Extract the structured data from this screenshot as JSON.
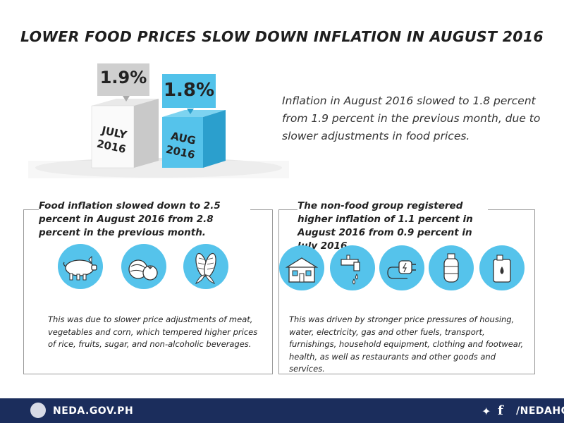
{
  "title": "LOWER FOOD PRICES SLOW DOWN INFLATION IN AUGUST 2016",
  "rates": {
    "july": {
      "value": "1.9%",
      "label_line1": "JULY",
      "label_line2": "2016"
    },
    "august": {
      "value": "1.8%",
      "label_line1": "AUG",
      "label_line2": "2016"
    }
  },
  "intro": "Inflation in August 2016 slowed to 1.8 percent from 1.9 percent in the previous month, due to slower adjustments in food prices.",
  "food": {
    "heading": "Food inflation slowed down to 2.5 percent in August 2016 from 2.8 percent in the previous month.",
    "icons": [
      "pig-icon",
      "vegetables-icon",
      "corn-icon"
    ],
    "body": "This was due to slower price adjustments of meat, vegetables and corn, which tempered higher prices of rice, fruits, sugar, and non-alcoholic beverages."
  },
  "nonfood": {
    "heading": "The non-food group registered higher inflation of 1.1 percent in August 2016 from 0.9 percent in July 2016.",
    "icons": [
      "house-icon",
      "faucet-icon",
      "electric-plug-icon",
      "gas-tank-icon",
      "fuel-can-icon"
    ],
    "body": "This was driven by stronger price pressures of housing, water, electricity, gas and other fuels, transport, furnishings, household equipment, clothing and footwear, health, as well as restaurants and other goods and services."
  },
  "footer": {
    "website": "NEDA.GOV.PH",
    "social": "/NEDAHQ"
  },
  "colors": {
    "accent": "#55c3eb",
    "footer": "#1b2d5c",
    "july_cube": "#d3d3d3",
    "august_cube": "#35a9d6"
  }
}
